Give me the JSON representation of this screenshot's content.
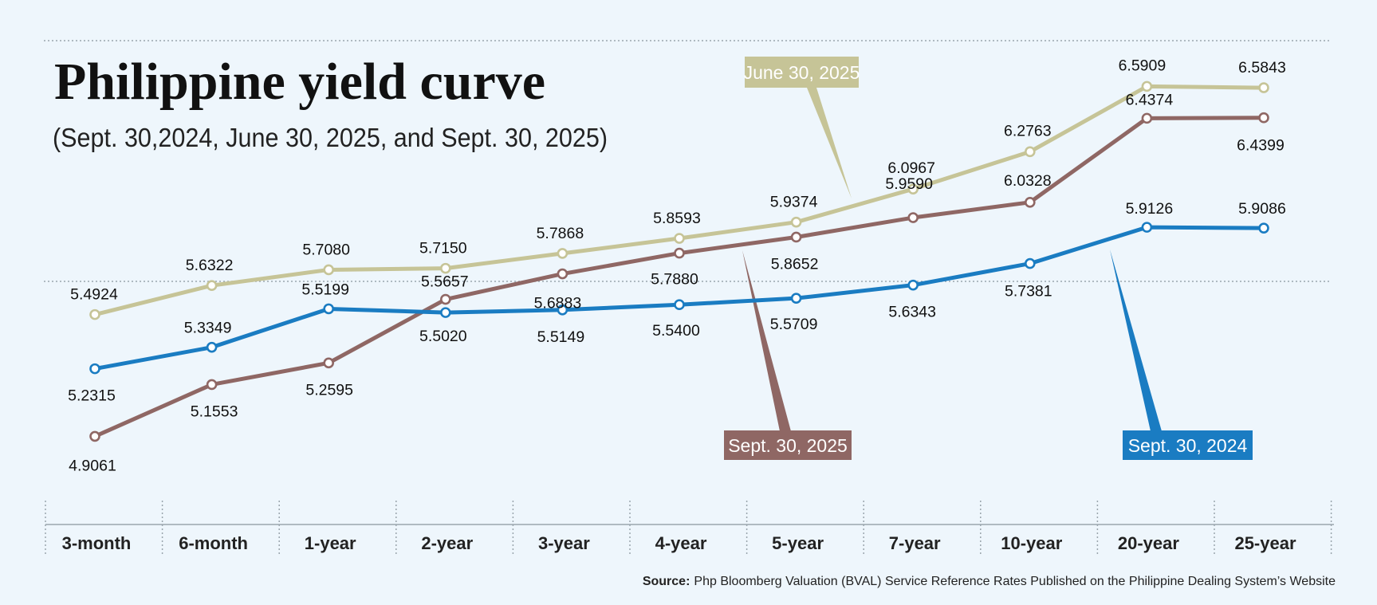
{
  "chart_data": {
    "type": "line",
    "title": "Philippine yield curve",
    "subtitle": "(Sept. 30,2024, June 30, 2025, and Sept. 30, 2025)",
    "categories": [
      "3-month",
      "6-month",
      "1-year",
      "2-year",
      "3-year",
      "4-year",
      "5-year",
      "7-year",
      "10-year",
      "20-year",
      "25-year"
    ],
    "series": [
      {
        "name": "June 30, 2025",
        "color": "#c6c497",
        "values": [
          5.4924,
          5.6322,
          5.708,
          5.715,
          5.7868,
          5.8593,
          5.9374,
          6.0967,
          6.2763,
          6.5909,
          6.5843
        ],
        "labels": [
          "5.4924",
          "5.6322",
          "5.7080",
          "5.7150",
          "5.7868",
          "5.8593",
          "5.9374",
          "6.0967",
          "6.2763",
          "6.5909",
          "6.5843"
        ]
      },
      {
        "name": "Sept. 30, 2025",
        "color": "#8f6764",
        "values": [
          4.9061,
          5.1553,
          5.2595,
          5.5657,
          5.6883,
          5.788,
          5.8652,
          5.959,
          6.0328,
          6.4374,
          6.4399
        ],
        "labels": [
          "4.9061",
          "5.1553",
          "5.2595",
          "5.5657",
          "5.6883",
          "5.7880",
          "5.8652",
          "5.9590",
          "6.0328",
          "6.4374",
          "6.4399"
        ]
      },
      {
        "name": "Sept. 30, 2024",
        "color": "#1a7cc2",
        "values": [
          5.2315,
          5.3349,
          5.5199,
          5.502,
          5.5149,
          5.54,
          5.5709,
          5.6343,
          5.7381,
          5.9126,
          5.9086
        ],
        "labels": [
          "5.2315",
          "5.3349",
          "5.5199",
          "5.5020",
          "5.5149",
          "5.5400",
          "5.5709",
          "5.6343",
          "5.7381",
          "5.9126",
          "5.9086"
        ]
      }
    ],
    "ylim": [
      4.9,
      6.6
    ],
    "grid": true,
    "xlabel": "",
    "ylabel": "",
    "source_label": "Source:",
    "source_text": "Php Bloomberg Valuation (BVAL) Service Reference Rates Published on the Philippine Dealing System’s Website"
  }
}
